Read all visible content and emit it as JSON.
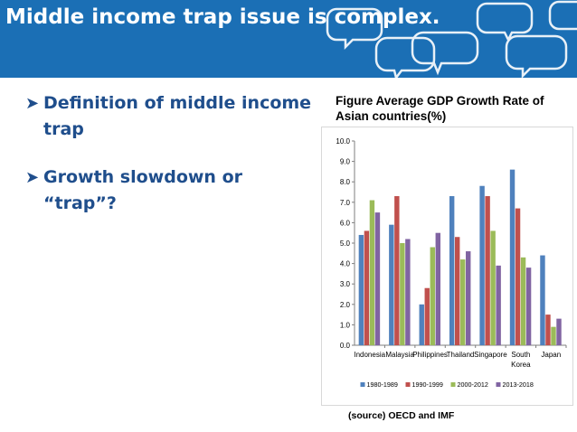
{
  "slide": {
    "title": "Middle income trap issue is complex.",
    "banner_color": "#1b6fb5",
    "bullets": [
      {
        "icon": "arrow-bullet-icon",
        "text": "Definition of middle income trap"
      },
      {
        "icon": "arrow-bullet-icon",
        "text": "Growth slowdown or “trap”?"
      }
    ],
    "figure_title": "Figure Average GDP Growth Rate of Asian countries(%)",
    "source_note": "(source) OECD and IMF"
  },
  "chart_data": {
    "type": "bar",
    "categories": [
      "Indonesia",
      "Malaysia",
      "Philippines",
      "Thailand",
      "Singapore",
      "South Korea",
      "Japan"
    ],
    "series": [
      {
        "name": "1980-1989",
        "color": "#4f81bd",
        "values": [
          5.4,
          5.9,
          2.0,
          7.3,
          7.8,
          8.6,
          4.4
        ]
      },
      {
        "name": "1990-1999",
        "color": "#c0504d",
        "values": [
          5.6,
          7.3,
          2.8,
          5.3,
          7.3,
          6.7,
          1.5
        ]
      },
      {
        "name": "2000-2012",
        "color": "#9bbb59",
        "values": [
          7.1,
          5.0,
          4.8,
          4.2,
          5.6,
          4.3,
          0.9
        ]
      },
      {
        "name": "2013-2018",
        "color": "#8064a2",
        "values": [
          6.5,
          5.2,
          5.5,
          4.6,
          3.9,
          3.8,
          1.3
        ]
      }
    ],
    "ylim": [
      0,
      10
    ],
    "yticks": [
      "0.0",
      "1.0",
      "2.0",
      "3.0",
      "4.0",
      "5.0",
      "6.0",
      "7.0",
      "8.0",
      "9.0",
      "10.0"
    ],
    "grid": false,
    "legend_position": "bottom"
  }
}
